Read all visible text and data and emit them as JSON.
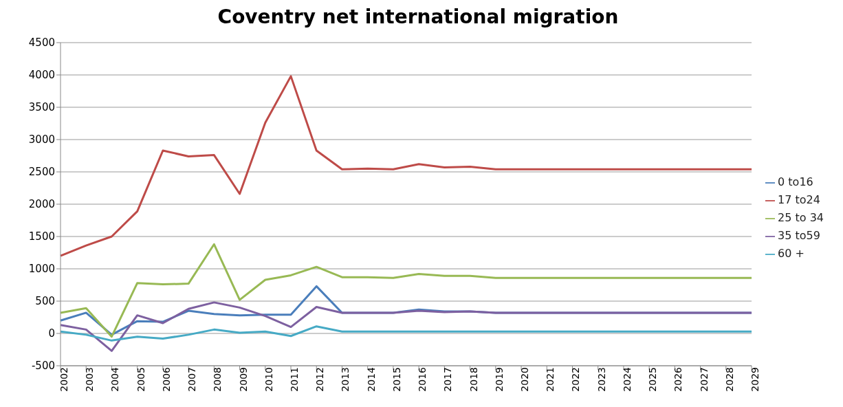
{
  "chart_data": {
    "type": "line",
    "title": "Coventry net international migration",
    "categories": [
      "2002",
      "2003",
      "2004",
      "2005",
      "2006",
      "2007",
      "2008",
      "2009",
      "2010",
      "2011",
      "2012",
      "2013",
      "2014",
      "2015",
      "2016",
      "2017",
      "2018",
      "2019",
      "2020",
      "2021",
      "2022",
      "2023",
      "2024",
      "2025",
      "2026",
      "2027",
      "2028",
      "2029"
    ],
    "series": [
      {
        "name": "0 to16",
        "color": "#4a7ebb",
        "values": [
          200,
          320,
          -20,
          190,
          180,
          350,
          300,
          280,
          290,
          290,
          730,
          320,
          320,
          320,
          370,
          340,
          340,
          320,
          320,
          320,
          320,
          320,
          320,
          320,
          320,
          320,
          320,
          320
        ]
      },
      {
        "name": "17 to24",
        "color": "#be4b48",
        "values": [
          1200,
          1360,
          1500,
          1890,
          2830,
          2740,
          2760,
          2160,
          3260,
          3980,
          2830,
          2540,
          2550,
          2540,
          2620,
          2570,
          2580,
          2540,
          2540,
          2540,
          2540,
          2540,
          2540,
          2540,
          2540,
          2540,
          2540,
          2540
        ]
      },
      {
        "name": "25 to 34",
        "color": "#98b954",
        "values": [
          320,
          390,
          -50,
          780,
          760,
          770,
          1380,
          520,
          830,
          900,
          1030,
          870,
          870,
          860,
          920,
          890,
          890,
          860,
          860,
          860,
          860,
          860,
          860,
          860,
          860,
          860,
          860,
          860
        ]
      },
      {
        "name": "35 to59",
        "color": "#7d60a0",
        "values": [
          130,
          60,
          -270,
          280,
          160,
          380,
          480,
          400,
          270,
          100,
          410,
          320,
          320,
          320,
          350,
          330,
          340,
          320,
          320,
          320,
          320,
          320,
          320,
          320,
          320,
          320,
          320,
          320
        ]
      },
      {
        "name": "60 +",
        "color": "#46aac5",
        "values": [
          30,
          -20,
          -110,
          -50,
          -80,
          -20,
          60,
          10,
          30,
          -40,
          110,
          30,
          30,
          30,
          30,
          30,
          30,
          30,
          30,
          30,
          30,
          30,
          30,
          30,
          30,
          30,
          30,
          30
        ]
      }
    ],
    "ylim": [
      -500,
      4500
    ],
    "yticks": [
      -500,
      0,
      500,
      1000,
      1500,
      2000,
      2500,
      3000,
      3500,
      4000,
      4500
    ],
    "grid": "y",
    "legend": "right",
    "marker": "none",
    "line_style": "solid"
  }
}
